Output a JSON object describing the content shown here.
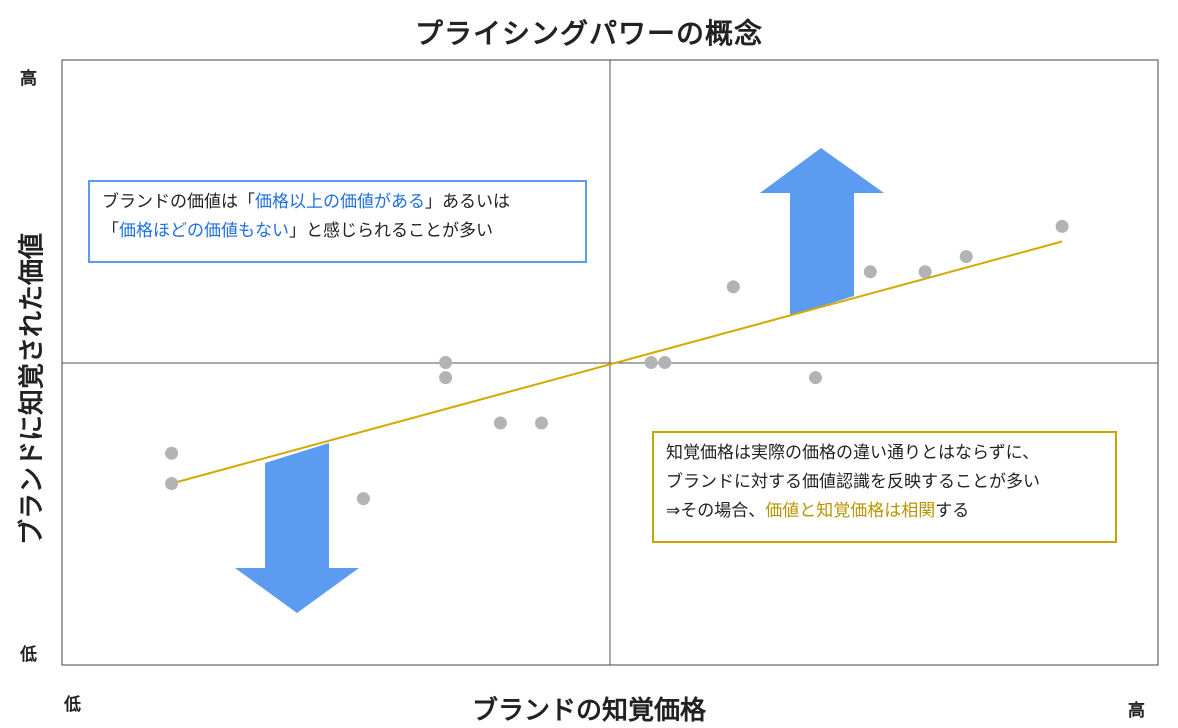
{
  "title": "プライシングパワーの概念",
  "axes": {
    "x_label": "ブランドの知覚価格",
    "y_label": "ブランドに知覚された価値",
    "x_low": "低",
    "x_high": "高",
    "y_low": "低",
    "y_high": "高"
  },
  "notes": {
    "brand_value": {
      "line1_pre": "ブランドの価値は「",
      "line1_hl": "価格以上の価値がある",
      "line1_post": "」あるいは",
      "line2_pre": "「",
      "line2_hl": "価格ほどの価値もない",
      "line2_post": "」と感じられることが多い"
    },
    "perceived_price": {
      "line1": "知覚価格は実際の価格の違い通りとはならずに、",
      "line2": "ブランドに対する価値認識を反映することが多い",
      "line3_pre": "⇒その場合、",
      "line3_hl": "価値と知覚価格は相関",
      "line3_post": "する"
    }
  },
  "colors": {
    "arrow": "#5b9bf0",
    "trend": "#d4a900",
    "point": "#b3b3b3",
    "axis": "#555555",
    "frame": "#444444",
    "brand_note_border": "#5b9bf0",
    "brand_note_highlight": "#1f6fe0",
    "perceived_note_border": "#c9a400",
    "perceived_note_highlight": "#b89500"
  },
  "chart_data": {
    "type": "scatter",
    "title": "プライシングパワーの概念",
    "xlabel": "ブランドの知覚価格",
    "ylabel": "ブランドに知覚された価値",
    "xlim": [
      -1,
      1
    ],
    "ylim": [
      -1,
      1
    ],
    "grid": false,
    "points": [
      {
        "x": -0.8,
        "y": -0.3
      },
      {
        "x": -0.8,
        "y": -0.4
      },
      {
        "x": -0.45,
        "y": -0.45
      },
      {
        "x": -0.3,
        "y": 0.0
      },
      {
        "x": -0.3,
        "y": -0.05
      },
      {
        "x": -0.2,
        "y": -0.2
      },
      {
        "x": -0.125,
        "y": -0.2
      },
      {
        "x": 0.075,
        "y": 0.0
      },
      {
        "x": 0.1,
        "y": 0.0
      },
      {
        "x": 0.225,
        "y": 0.25
      },
      {
        "x": 0.375,
        "y": -0.05
      },
      {
        "x": 0.475,
        "y": 0.3
      },
      {
        "x": 0.575,
        "y": 0.3
      },
      {
        "x": 0.65,
        "y": 0.35
      },
      {
        "x": 0.825,
        "y": 0.45
      }
    ],
    "trend_line": {
      "from": [
        -0.8,
        -0.4
      ],
      "to": [
        0.825,
        0.4
      ]
    },
    "arrows": [
      {
        "direction": "up",
        "quadrant": "upper-right"
      },
      {
        "direction": "down",
        "quadrant": "lower-left"
      }
    ]
  }
}
